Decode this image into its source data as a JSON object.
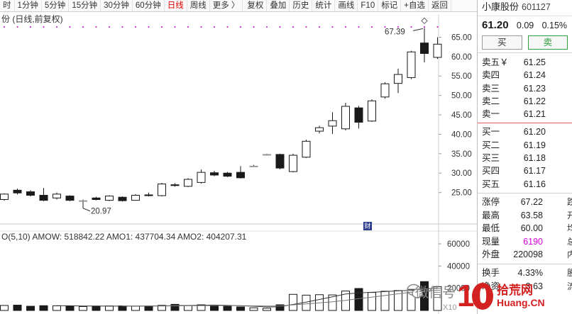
{
  "toolbar": {
    "items": [
      "时",
      "1分钟",
      "5分钟",
      "15分钟",
      "30分钟",
      "60分钟",
      "日线",
      "周线",
      "更多 〉",
      "复权",
      "叠加",
      "历史",
      "统计",
      "画线",
      "F10",
      "标记",
      "+自选",
      "返回"
    ]
  },
  "chart": {
    "title": "份 (日线,前复权)",
    "high_label": "67.39",
    "low_label": "20.97",
    "y_ticks": [
      "65.00",
      "60.00",
      "55.00",
      "50.00",
      "45.00",
      "40.00",
      "35.00",
      "30.00",
      "25.00"
    ],
    "up_color": "#e02020",
    "down_color": "#1a1a1a"
  },
  "volume": {
    "label": "O(5,10)  AMOW: 518842.22  AMO1: 437704.34  AMO2: 404207.31",
    "y_ticks": [
      "60000",
      "40000",
      "20000"
    ],
    "unit": "X10"
  },
  "chart_data": {
    "type": "candlestick",
    "candles": [
      {
        "o": 23.2,
        "c": 24.6,
        "h": 24.8,
        "l": 22.9
      },
      {
        "o": 25.6,
        "c": 24.9,
        "h": 26.0,
        "l": 24.5
      },
      {
        "o": 25.2,
        "c": 24.3,
        "h": 25.6,
        "l": 24.0
      },
      {
        "o": 24.3,
        "c": 23.0,
        "h": 26.2,
        "l": 22.8
      },
      {
        "o": 23.6,
        "c": 24.6,
        "h": 25.0,
        "l": 23.2
      },
      {
        "o": 24.1,
        "c": 23.0,
        "h": 24.3,
        "l": 22.8
      },
      {
        "o": 22.9,
        "c": 22.9,
        "h": 23.2,
        "l": 20.97
      },
      {
        "o": 23.6,
        "c": 23.2,
        "h": 23.9,
        "l": 23.0
      },
      {
        "o": 23.0,
        "c": 24.1,
        "h": 24.3,
        "l": 22.8
      },
      {
        "o": 23.8,
        "c": 22.9,
        "h": 24.0,
        "l": 22.7
      },
      {
        "o": 23.0,
        "c": 24.3,
        "h": 24.6,
        "l": 22.9
      },
      {
        "o": 24.4,
        "c": 24.2,
        "h": 25.0,
        "l": 24.0
      },
      {
        "o": 24.2,
        "c": 27.2,
        "h": 27.5,
        "l": 24.0
      },
      {
        "o": 27.0,
        "c": 26.8,
        "h": 27.4,
        "l": 26.5
      },
      {
        "o": 26.6,
        "c": 28.4,
        "h": 28.7,
        "l": 26.4
      },
      {
        "o": 27.6,
        "c": 30.2,
        "h": 30.9,
        "l": 27.3
      },
      {
        "o": 30.1,
        "c": 29.5,
        "h": 30.6,
        "l": 29.2
      },
      {
        "o": 30.0,
        "c": 29.2,
        "h": 30.3,
        "l": 29.0
      },
      {
        "o": 30.2,
        "c": 28.8,
        "h": 31.8,
        "l": 28.6
      },
      {
        "o": 31.8,
        "c": 31.8,
        "h": 32.1,
        "l": 31.6
      },
      {
        "o": 34.8,
        "c": 34.8,
        "h": 35.0,
        "l": 34.6
      },
      {
        "o": 34.8,
        "c": 31.3,
        "h": 35.0,
        "l": 31.0
      },
      {
        "o": 30.4,
        "c": 34.6,
        "h": 35.0,
        "l": 30.2
      },
      {
        "o": 34.1,
        "c": 38.2,
        "h": 38.6,
        "l": 33.9
      },
      {
        "o": 40.8,
        "c": 41.7,
        "h": 42.2,
        "l": 40.2
      },
      {
        "o": 42.1,
        "c": 43.5,
        "h": 45.7,
        "l": 40.1
      },
      {
        "o": 41.4,
        "c": 47.2,
        "h": 48.1,
        "l": 41.0
      },
      {
        "o": 46.8,
        "c": 43.1,
        "h": 47.3,
        "l": 41.5
      },
      {
        "o": 43.4,
        "c": 48.6,
        "h": 49.0,
        "l": 43.2
      },
      {
        "o": 49.6,
        "c": 53.0,
        "h": 53.4,
        "l": 49.2
      },
      {
        "o": 53.1,
        "c": 55.4,
        "h": 56.9,
        "l": 50.6
      },
      {
        "o": 54.6,
        "c": 61.2,
        "h": 61.5,
        "l": 54.2
      },
      {
        "o": 63.5,
        "c": 60.8,
        "h": 67.39,
        "l": 58.5
      },
      {
        "o": 59.8,
        "c": 63.2,
        "h": 65.0,
        "l": 59.4
      }
    ],
    "volumes": [
      4500,
      4800,
      3800,
      4300,
      4200,
      4000,
      3500,
      3900,
      4000,
      4100,
      3900,
      4000,
      4600,
      5500,
      4400,
      5100,
      4600,
      3800,
      3200,
      2400,
      2000,
      5100,
      14500,
      13800,
      14200,
      14000,
      17500,
      19800,
      16200,
      17300,
      17900,
      19000,
      26000,
      21500
    ],
    "ylim": [
      18,
      68
    ],
    "vol_ylim": [
      0,
      60000
    ]
  },
  "stock": {
    "name": "小康股份",
    "code": "601127",
    "price": "61.20",
    "change": "0.09",
    "change_pct": "0.15%"
  },
  "buttons": {
    "buy": "买",
    "sell": "卖"
  },
  "orderbook": {
    "asks": [
      {
        "label": "卖五￥",
        "price": "61.25"
      },
      {
        "label": "卖四",
        "price": "61.24"
      },
      {
        "label": "卖三",
        "price": "61.23"
      },
      {
        "label": "卖二",
        "price": "61.22"
      },
      {
        "label": "卖一",
        "price": "61.21"
      }
    ],
    "bids": [
      {
        "label": "买一",
        "price": "61.20"
      },
      {
        "label": "买二",
        "price": "61.19"
      },
      {
        "label": "买三",
        "price": "61.18"
      },
      {
        "label": "买四",
        "price": "61.17"
      },
      {
        "label": "买五",
        "price": "61.16"
      }
    ]
  },
  "stats": [
    {
      "label": "涨停",
      "value": "67.22",
      "trail": "跌"
    },
    {
      "label": "最高",
      "value": "63.58",
      "trail": "开"
    },
    {
      "label": "最低",
      "value": "60.00",
      "trail": "均"
    },
    {
      "label": "现量",
      "value": "6190",
      "trail": "总"
    },
    {
      "label": "外盘",
      "value": "220098",
      "trail": "内"
    }
  ],
  "stats2": [
    {
      "label": "换手",
      "value": "4.33%",
      "trail": "股"
    },
    {
      "label": "净资",
      "value": "3.63",
      "trail": "流"
    }
  ],
  "watermark": {
    "text": "微信号",
    "brand": "拾荒网",
    "sub": "Huang.CN",
    "digits": "10"
  }
}
